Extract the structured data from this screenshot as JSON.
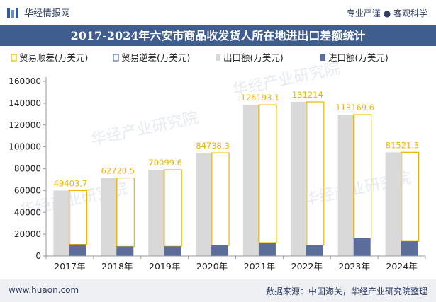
{
  "header": {
    "brand": "华经情报网",
    "slogan": "专业严谨 ● 客观科学"
  },
  "footer": {
    "site": "www.huaon.com",
    "source": "数据来源：中国海关，华经产业研究院整理"
  },
  "colors": {
    "title_bg": "#3f5d8f",
    "export": "#d9d9d9",
    "import": "#5b6e99",
    "surplus": "#f0b400",
    "deficit": "#4f6fa8"
  },
  "chart_data": {
    "type": "bar",
    "title": "2017-2024年六安市商品收发货人所在地进出口差额统计",
    "categories": [
      "2017年",
      "2018年",
      "2019年",
      "2020年",
      "2021年",
      "2022年",
      "2023年",
      "2024年"
    ],
    "series": [
      {
        "name": "贸易顺差(万美元)",
        "kind": "outline",
        "values": [
          49403.7,
          62720.5,
          70099.6,
          84738.3,
          126193.1,
          131214,
          113169.6,
          81521.3
        ]
      },
      {
        "name": "贸易逆差(万美元)",
        "kind": "outline",
        "values": [
          0,
          0,
          0,
          0,
          0,
          0,
          0,
          0
        ]
      },
      {
        "name": "出口额(万美元)",
        "kind": "bar",
        "values": [
          60000,
          71500,
          79000,
          94500,
          138500,
          141200,
          129500,
          95000
        ]
      },
      {
        "name": "进口额(万美元)",
        "kind": "bar",
        "values": [
          10600,
          8800,
          8900,
          9800,
          12300,
          10000,
          16300,
          13500
        ]
      }
    ],
    "data_labels": [
      "49403.7",
      "62720.5",
      "70099.6",
      "84738.3",
      "126193.1",
      "131214",
      "113169.6",
      "81521.3"
    ],
    "ylim": [
      0,
      160000
    ],
    "yticks": [
      "0",
      "20000",
      "40000",
      "60000",
      "80000",
      "100000",
      "120000",
      "140000",
      "160000"
    ],
    "grid": false,
    "legend": "top"
  }
}
